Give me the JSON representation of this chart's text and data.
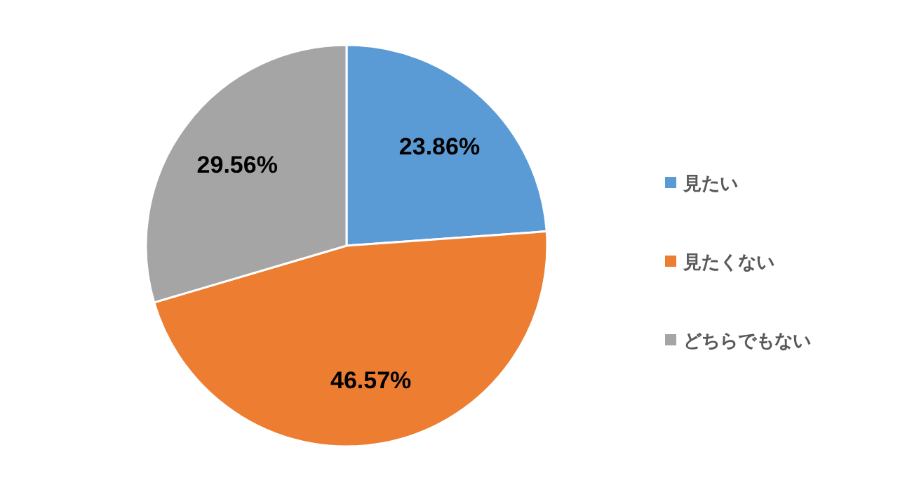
{
  "chart_data": {
    "type": "pie",
    "categories": [
      "見たい",
      "見たくない",
      "どちらでもない"
    ],
    "values": [
      23.86,
      46.57,
      29.56
    ],
    "colors": [
      "#5b9bd5",
      "#ed7d31",
      "#a5a5a5"
    ],
    "value_labels": [
      "23.86%",
      "46.57%",
      "29.56%"
    ],
    "legend": "right"
  }
}
